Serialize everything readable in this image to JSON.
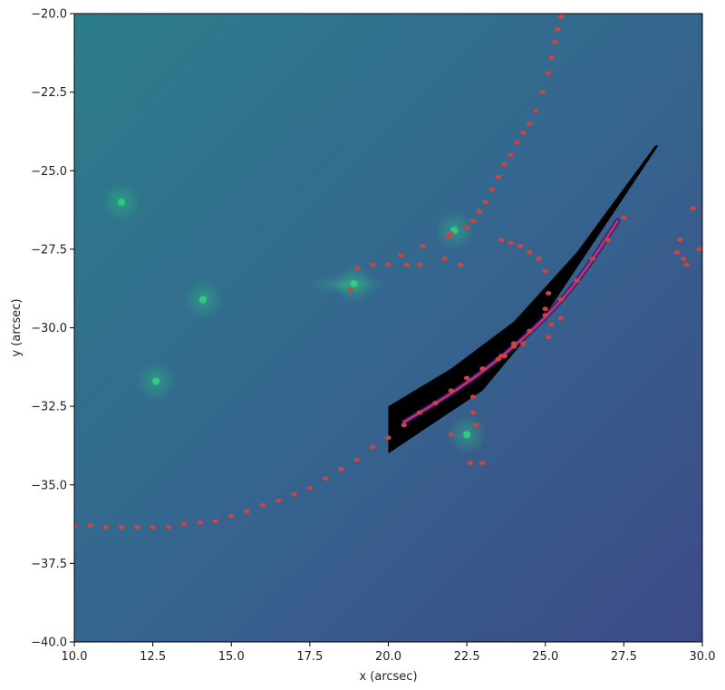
{
  "chart_data": {
    "type": "scatter",
    "title": "",
    "xlabel": "x (arcsec)",
    "ylabel": "y (arcsec)",
    "xlim": [
      10.0,
      30.0
    ],
    "ylim": [
      -40.0,
      -20.0
    ],
    "x_ticks": [
      10.0,
      12.5,
      15.0,
      17.5,
      20.0,
      22.5,
      25.0,
      27.5,
      30.0
    ],
    "x_tick_labels": [
      "10.0",
      "12.5",
      "15.0",
      "17.5",
      "20.0",
      "22.5",
      "25.0",
      "27.5",
      "30.0"
    ],
    "y_ticks": [
      -20.0,
      -22.5,
      -25.0,
      -27.5,
      -30.0,
      -32.5,
      -35.0,
      -37.5,
      -40.0
    ],
    "y_tick_labels": [
      "−20.0",
      "−22.5",
      "−25.0",
      "−27.5",
      "−30.0",
      "−32.5",
      "−35.0",
      "−37.5",
      "−40.0"
    ],
    "grid": false,
    "legend": "none",
    "background": {
      "colormap": "viridis",
      "gradient_colors": [
        "#2b7d8a",
        "#35668f",
        "#3d4a86"
      ],
      "bright_sources": [
        {
          "x": 11.5,
          "y": -26.0
        },
        {
          "x": 14.1,
          "y": -29.1
        },
        {
          "x": 12.6,
          "y": -31.7
        },
        {
          "x": 18.9,
          "y": -28.6
        },
        {
          "x": 22.1,
          "y": -26.9
        },
        {
          "x": 22.5,
          "y": -33.4
        }
      ],
      "source_color": "#2ecc80"
    },
    "arc_band": {
      "color": "#000000",
      "upper_edge": [
        [
          20.0,
          -32.5
        ],
        [
          22.0,
          -31.3
        ],
        [
          24.0,
          -29.8
        ],
        [
          26.0,
          -27.6
        ],
        [
          28.5,
          -24.2
        ],
        [
          29.5,
          -24.2
        ]
      ],
      "lower_edge": [
        [
          28.6,
          -24.2
        ],
        [
          27.0,
          -26.6
        ],
        [
          25.0,
          -29.6
        ],
        [
          23.0,
          -32.0
        ],
        [
          20.0,
          -34.0
        ]
      ],
      "inner_arc_color": "#c8307a",
      "inner_arc": [
        [
          20.5,
          -33.0
        ],
        [
          22.5,
          -31.8
        ],
        [
          24.5,
          -30.2
        ],
        [
          26.0,
          -28.6
        ],
        [
          27.3,
          -26.6
        ]
      ]
    },
    "series": [
      {
        "color": "#cc4444",
        "marker": "dot",
        "values": [
          [
            10.0,
            -36.3
          ],
          [
            10.5,
            -36.3
          ],
          [
            11.0,
            -36.35
          ],
          [
            11.5,
            -36.35
          ],
          [
            12.0,
            -36.35
          ],
          [
            12.5,
            -36.35
          ],
          [
            13.0,
            -36.35
          ],
          [
            13.5,
            -36.25
          ],
          [
            14.0,
            -36.2
          ],
          [
            14.5,
            -36.15
          ],
          [
            15.0,
            -36.0
          ],
          [
            15.5,
            -35.85
          ],
          [
            16.0,
            -35.65
          ],
          [
            16.5,
            -35.5
          ],
          [
            17.0,
            -35.3
          ],
          [
            17.5,
            -35.1
          ],
          [
            18.0,
            -34.8
          ],
          [
            18.5,
            -34.5
          ],
          [
            19.0,
            -34.2
          ],
          [
            19.5,
            -33.8
          ],
          [
            20.0,
            -33.5
          ],
          [
            20.5,
            -33.1
          ],
          [
            21.0,
            -32.7
          ],
          [
            21.5,
            -32.4
          ],
          [
            22.0,
            -32.0
          ],
          [
            22.5,
            -31.6
          ],
          [
            23.0,
            -31.3
          ],
          [
            23.5,
            -31.0
          ],
          [
            24.0,
            -30.5
          ],
          [
            24.5,
            -30.1
          ],
          [
            25.0,
            -29.6
          ],
          [
            25.5,
            -29.1
          ],
          [
            26.0,
            -28.5
          ],
          [
            26.5,
            -27.8
          ],
          [
            27.0,
            -27.2
          ],
          [
            27.5,
            -26.5
          ],
          [
            21.9,
            -27.1
          ],
          [
            22.0,
            -27.0
          ],
          [
            21.1,
            -27.4
          ],
          [
            20.4,
            -27.7
          ],
          [
            19.5,
            -28.0
          ],
          [
            19.0,
            -28.1
          ],
          [
            20.0,
            -28.0
          ],
          [
            20.6,
            -28.0
          ],
          [
            21.0,
            -28.0
          ],
          [
            21.8,
            -27.8
          ],
          [
            22.3,
            -28.0
          ],
          [
            18.8,
            -28.8
          ],
          [
            22.5,
            -26.8
          ],
          [
            22.7,
            -26.6
          ],
          [
            22.9,
            -26.3
          ],
          [
            23.1,
            -26.0
          ],
          [
            23.3,
            -25.6
          ],
          [
            23.5,
            -25.2
          ],
          [
            23.7,
            -24.8
          ],
          [
            23.9,
            -24.5
          ],
          [
            24.1,
            -24.1
          ],
          [
            24.3,
            -23.8
          ],
          [
            24.5,
            -23.5
          ],
          [
            24.7,
            -23.1
          ],
          [
            24.9,
            -22.5
          ],
          [
            25.1,
            -21.9
          ],
          [
            25.2,
            -21.4
          ],
          [
            25.3,
            -20.9
          ],
          [
            25.4,
            -20.5
          ],
          [
            25.5,
            -20.1
          ],
          [
            23.6,
            -27.2
          ],
          [
            23.9,
            -27.3
          ],
          [
            24.2,
            -27.4
          ],
          [
            24.5,
            -27.6
          ],
          [
            24.8,
            -27.8
          ],
          [
            25.0,
            -28.2
          ],
          [
            25.1,
            -28.9
          ],
          [
            25.0,
            -29.4
          ],
          [
            25.2,
            -29.9
          ],
          [
            25.5,
            -29.7
          ],
          [
            25.1,
            -30.3
          ],
          [
            24.3,
            -30.5
          ],
          [
            24.0,
            -30.6
          ],
          [
            23.7,
            -30.9
          ],
          [
            23.6,
            -30.9
          ],
          [
            22.7,
            -32.2
          ],
          [
            22.7,
            -32.7
          ],
          [
            22.8,
            -33.1
          ],
          [
            22.0,
            -33.4
          ],
          [
            22.6,
            -34.3
          ],
          [
            23.0,
            -34.3
          ],
          [
            29.3,
            -27.2
          ],
          [
            29.2,
            -27.6
          ],
          [
            29.4,
            -27.8
          ],
          [
            29.5,
            -28.0
          ],
          [
            29.7,
            -26.2
          ],
          [
            29.9,
            -27.5
          ]
        ]
      }
    ]
  }
}
